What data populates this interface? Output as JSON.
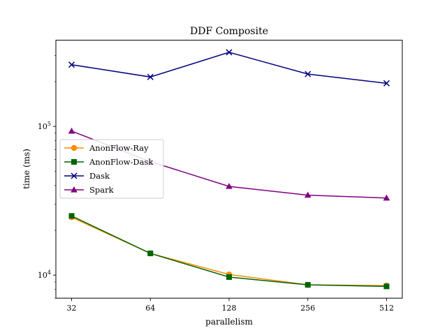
{
  "chart_data": {
    "type": "line",
    "title": "DDF Composite",
    "xlabel": "parallelism",
    "ylabel": "time (ms)",
    "x_scale": "log2",
    "y_scale": "log10",
    "x": [
      32,
      64,
      128,
      256,
      512
    ],
    "x_tick_labels": [
      "32",
      "64",
      "128",
      "256",
      "512"
    ],
    "y_tick_labels": [
      {
        "value": 10000,
        "base": "10",
        "exp": "4"
      },
      {
        "value": 100000,
        "base": "10",
        "exp": "5"
      }
    ],
    "ylim": [
      7000,
      380000
    ],
    "grid": false,
    "legend_position": "center-left",
    "series": [
      {
        "name": "AnonFlow-Ray",
        "color": "#ff8c00",
        "marker": "circle",
        "values": [
          24500,
          14000,
          10100,
          8600,
          8500
        ]
      },
      {
        "name": "AnonFlow-Dask",
        "color": "#006400",
        "marker": "square",
        "values": [
          25000,
          14000,
          9700,
          8600,
          8400
        ]
      },
      {
        "name": "Dask",
        "color": "#000080",
        "marker": "x",
        "values": [
          260000,
          215000,
          315000,
          225000,
          195000
        ]
      },
      {
        "name": "Spark",
        "color": "#800080",
        "marker": "triangle",
        "values": [
          93000,
          58000,
          39500,
          34500,
          33000
        ]
      }
    ]
  }
}
